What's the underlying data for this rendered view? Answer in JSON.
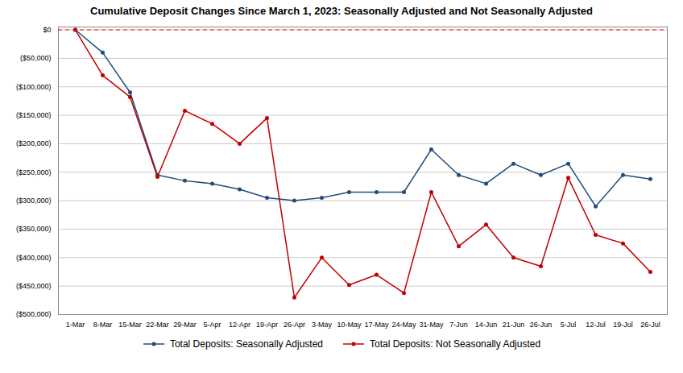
{
  "chart_data": {
    "type": "line",
    "title": "Cumulative Deposit Changes Since March 1, 2023: Seasonally Adjusted and Not Seasonally Adjusted",
    "categories": [
      "1-Mar",
      "8-Mar",
      "15-Mar",
      "22-Mar",
      "29-Mar",
      "5-Apr",
      "12-Apr",
      "19-Apr",
      "26-Apr",
      "3-May",
      "10-May",
      "17-May",
      "24-May",
      "31-May",
      "7-Jun",
      "14-Jun",
      "21-Jun",
      "26-Jun",
      "5-Jul",
      "12-Jul",
      "19-Jul",
      "26-Jul"
    ],
    "series": [
      {
        "name": "Total Deposits: Seasonally Adjusted",
        "color": "#1f4e79",
        "marker": "circle",
        "line_style": "solid",
        "values": [
          0,
          -40000,
          -110000,
          -255000,
          -265000,
          -270000,
          -280000,
          -295000,
          -300000,
          -295000,
          -285000,
          -285000,
          -285000,
          -210000,
          -255000,
          -270000,
          -235000,
          -255000,
          -235000,
          -310000,
          -255000,
          -262000
        ]
      },
      {
        "name": "Total Deposits: Not Seasonally Adjusted",
        "color": "#c00000",
        "marker": "circle",
        "line_style": "solid",
        "values": [
          0,
          -80000,
          -118000,
          -258000,
          -142000,
          -165000,
          -200000,
          -155000,
          -470000,
          -400000,
          -448000,
          -430000,
          -462000,
          -285000,
          -380000,
          -342000,
          -400000,
          -415000,
          -260000,
          -360000,
          -375000,
          -425000
        ]
      }
    ],
    "reference_lines": [
      {
        "value": 0,
        "color": "#ff0000",
        "line_style": "dashed"
      }
    ],
    "ylim": [
      -500000,
      5000
    ],
    "yticks": [
      {
        "value": 0,
        "label": "$0"
      },
      {
        "value": -50000,
        "label": "($50,000)"
      },
      {
        "value": -100000,
        "label": "($100,000)"
      },
      {
        "value": -150000,
        "label": "($150,000)"
      },
      {
        "value": -200000,
        "label": "($200,000)"
      },
      {
        "value": -250000,
        "label": "($250,000)"
      },
      {
        "value": -300000,
        "label": "($300,000)"
      },
      {
        "value": -350000,
        "label": "($350,000)"
      },
      {
        "value": -400000,
        "label": "($400,000)"
      },
      {
        "value": -450000,
        "label": "($450,000)"
      },
      {
        "value": -500000,
        "label": "($500,000)"
      }
    ],
    "grid": true,
    "legend": "bottom"
  }
}
